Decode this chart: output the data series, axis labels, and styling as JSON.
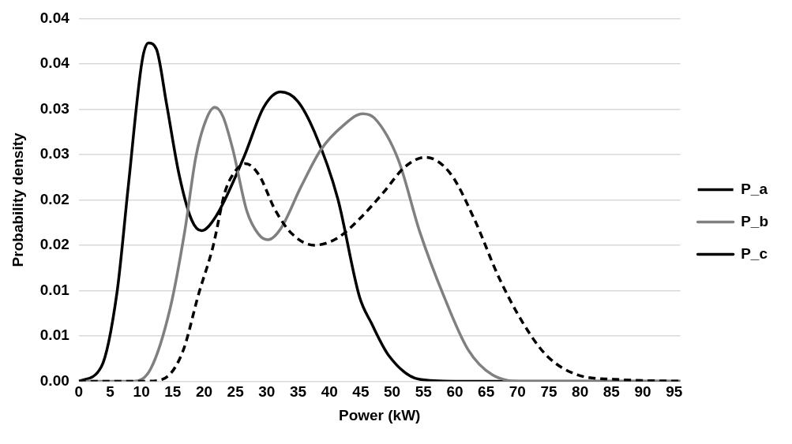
{
  "chart_data": {
    "type": "line",
    "xlabel": "Power (kW)",
    "ylabel": "Probability density",
    "xlim": [
      0,
      96
    ],
    "xticks": [
      0,
      5,
      10,
      15,
      20,
      25,
      30,
      35,
      40,
      45,
      50,
      55,
      60,
      65,
      70,
      75,
      80,
      85,
      90,
      95
    ],
    "ylim": [
      0,
      0.04
    ],
    "yticks": [
      {
        "value": 0,
        "label": "0.00"
      },
      {
        "value": 0.005,
        "label": "0.01"
      },
      {
        "value": 0.01,
        "label": "0.01"
      },
      {
        "value": 0.015,
        "label": "0.02"
      },
      {
        "value": 0.02,
        "label": "0.02"
      },
      {
        "value": 0.025,
        "label": "0.03"
      },
      {
        "value": 0.03,
        "label": "0.03"
      },
      {
        "value": 0.035,
        "label": "0.04"
      },
      {
        "value": 0.04,
        "label": "0.04"
      }
    ],
    "grid": "y",
    "legend": "right",
    "marker": "none",
    "series": [
      {
        "name": "P_a",
        "color": "#000000",
        "line_style": "dashed",
        "x": [
          0,
          10.6,
          13.3,
          16.5,
          19.2,
          21.4,
          23.3,
          24.6,
          26.6,
          28.7,
          31.4,
          34.1,
          37.6,
          41.3,
          44.8,
          48.6,
          52,
          55.3,
          59.3,
          63.1,
          67,
          70.9,
          74.7,
          79.6,
          85.8,
          96
        ],
        "values": [
          0,
          0,
          0.0002,
          0.0031,
          0.0098,
          0.0148,
          0.0208,
          0.0228,
          0.024,
          0.0228,
          0.0188,
          0.0162,
          0.015,
          0.0158,
          0.0179,
          0.0208,
          0.0236,
          0.0247,
          0.0229,
          0.0179,
          0.0115,
          0.0064,
          0.0028,
          0.0007,
          0.0002,
          0
        ]
      },
      {
        "name": "P_b",
        "color": "#808080",
        "line_style": "solid",
        "x": [
          0,
          8.8,
          11.5,
          14.6,
          16.9,
          18.7,
          20.3,
          21.7,
          23,
          24.6,
          26.8,
          28.7,
          30.2,
          32.2,
          35.5,
          38.6,
          42.2,
          45.3,
          47.2,
          51,
          54.4,
          58.3,
          62.1,
          66,
          71,
          96
        ],
        "values": [
          0,
          0,
          0.0014,
          0.0081,
          0.0165,
          0.0248,
          0.0288,
          0.0302,
          0.0292,
          0.0255,
          0.0188,
          0.0162,
          0.0156,
          0.0168,
          0.0215,
          0.0255,
          0.0282,
          0.0295,
          0.029,
          0.0244,
          0.0165,
          0.0093,
          0.0035,
          0.0007,
          0,
          0
        ]
      },
      {
        "name": "P_c",
        "color": "#000000",
        "line_style": "solid",
        "x": [
          0,
          3.6,
          6.1,
          7.9,
          10.1,
          11.1,
          12.4,
          14,
          16,
          18,
          19.6,
          21.9,
          26.4,
          29.5,
          32.2,
          34.9,
          37.6,
          41.3,
          44.8,
          46.7,
          49.5,
          54.4,
          60,
          96
        ],
        "values": [
          0,
          0.0016,
          0.0098,
          0.0215,
          0.0353,
          0.0373,
          0.0366,
          0.0306,
          0.0228,
          0.0178,
          0.0166,
          0.0182,
          0.0248,
          0.0302,
          0.0319,
          0.0309,
          0.0275,
          0.0202,
          0.0093,
          0.0064,
          0.0028,
          0.0002,
          0,
          0
        ]
      }
    ]
  }
}
